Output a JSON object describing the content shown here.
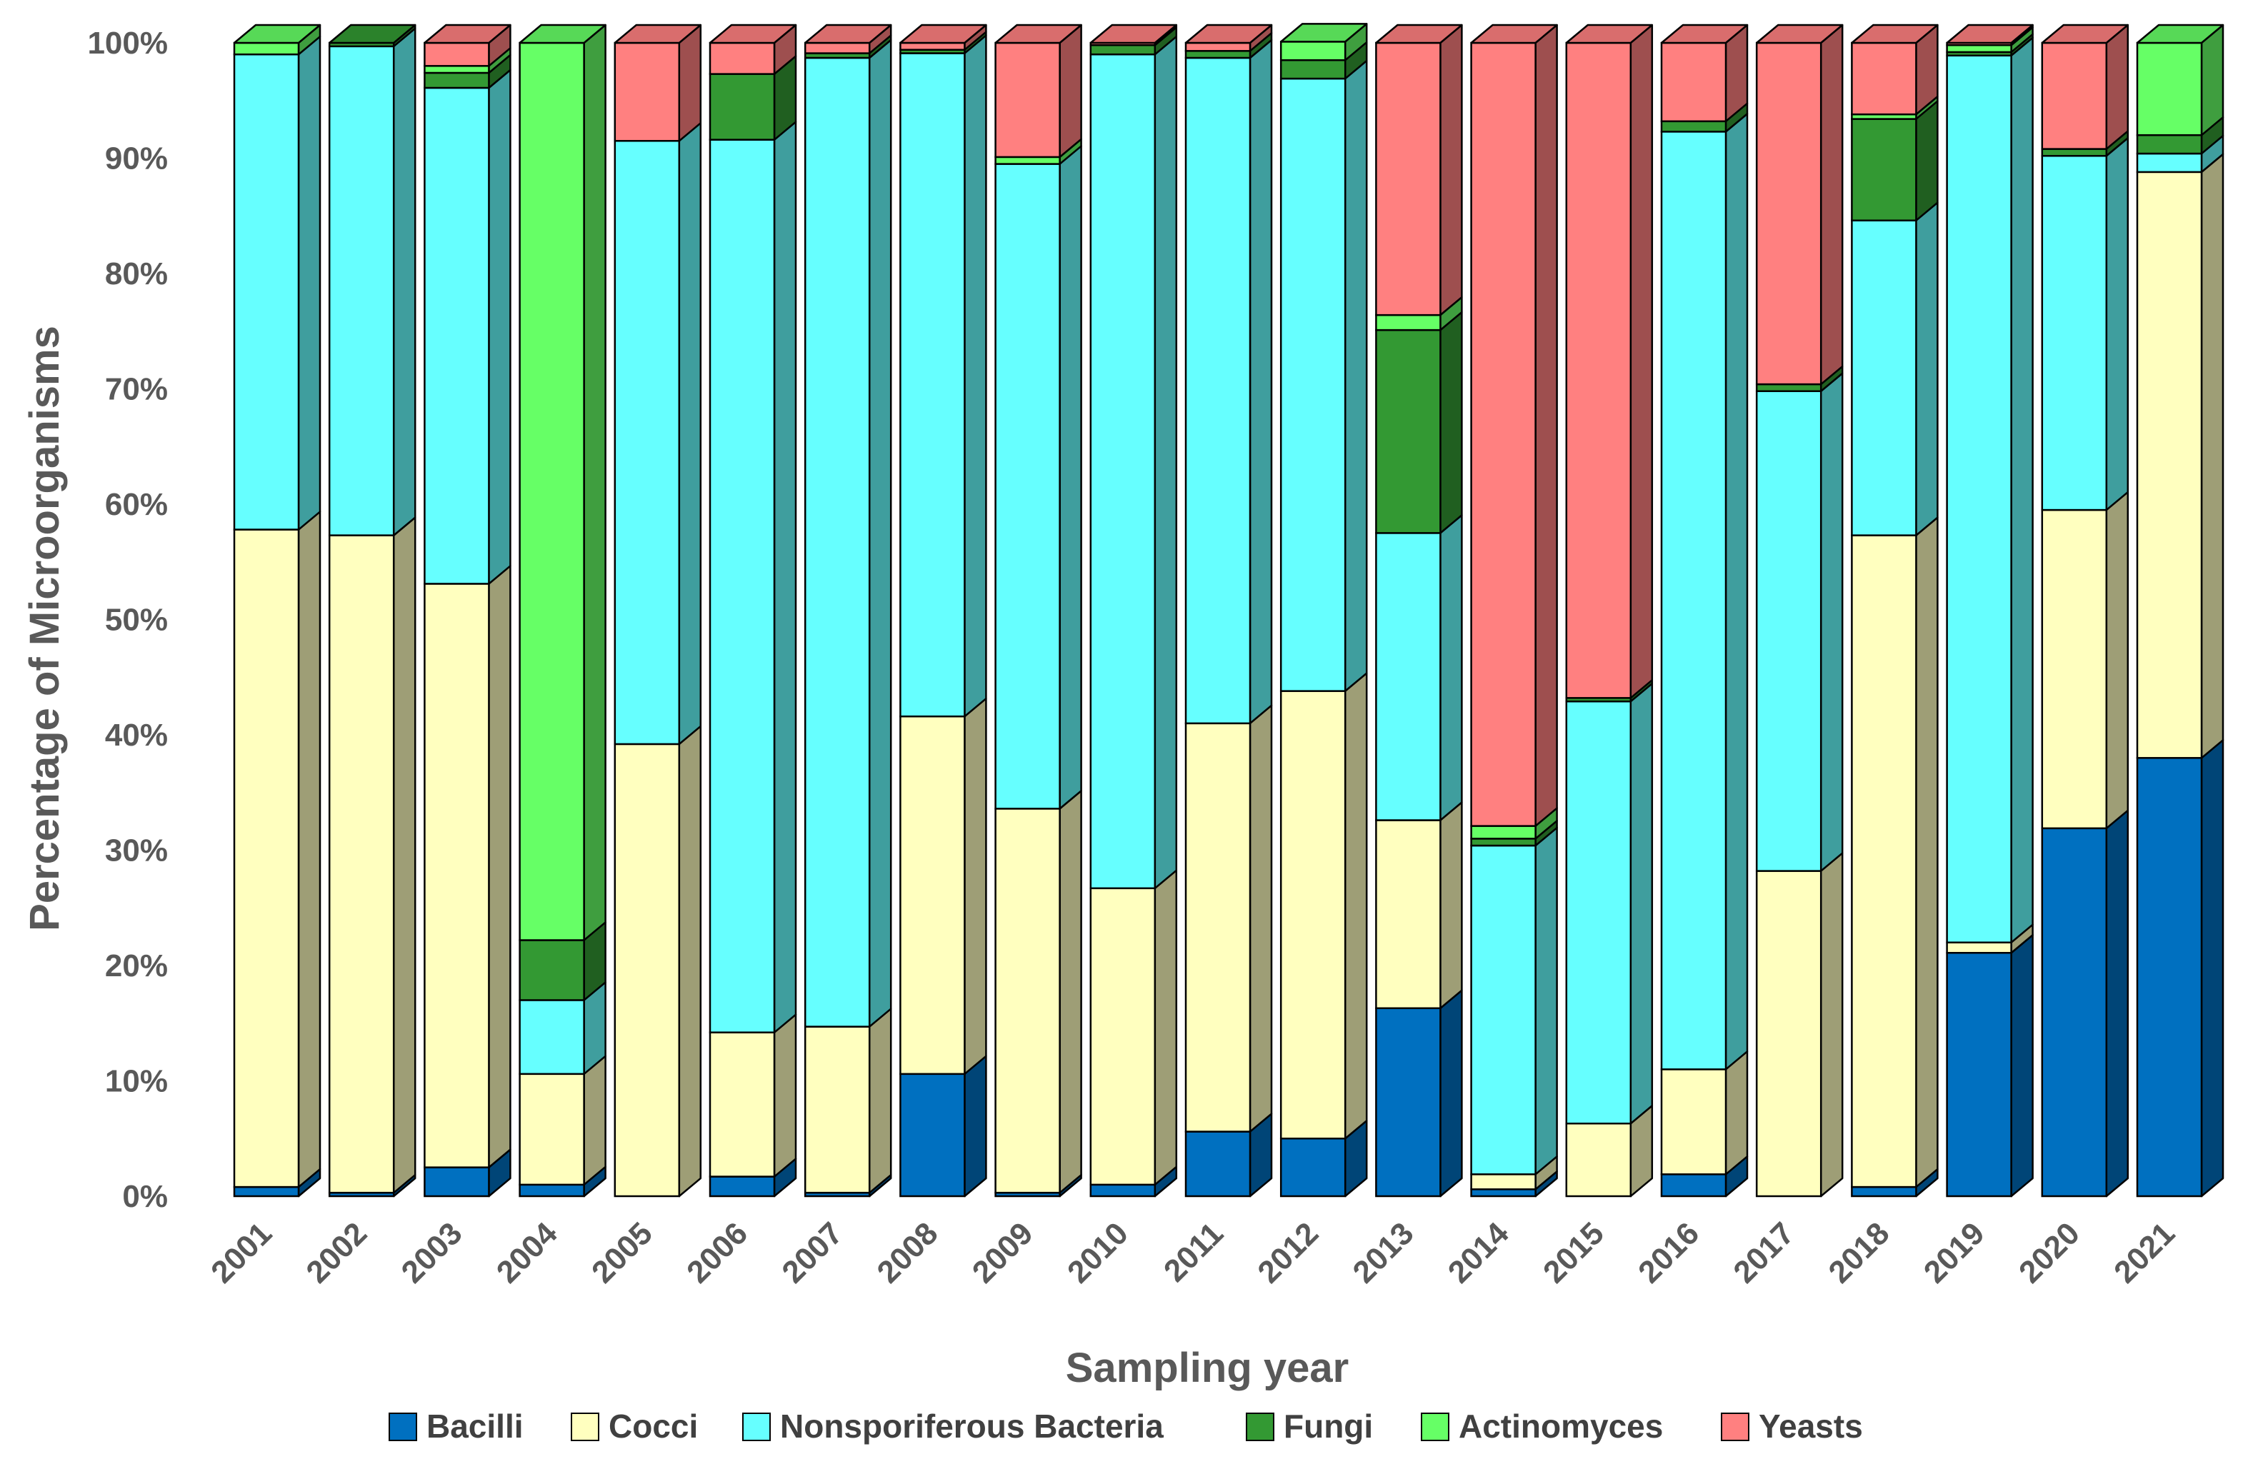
{
  "chart_data": {
    "type": "bar",
    "stacked": true,
    "title": "",
    "xlabel": "Sampling year",
    "ylabel": "Percentage of Microorganisms",
    "ylim": [
      0,
      100
    ],
    "y_ticks": [
      "0%",
      "10%",
      "20%",
      "30%",
      "40%",
      "50%",
      "60%",
      "70%",
      "80%",
      "90%",
      "100%"
    ],
    "categories": [
      "2001",
      "2002",
      "2003",
      "2004",
      "2005",
      "2006",
      "2007",
      "2008",
      "2009",
      "2010",
      "2011",
      "2012",
      "2013",
      "2014",
      "2015",
      "2016",
      "2017",
      "2018",
      "2019",
      "2020",
      "2021"
    ],
    "series": [
      {
        "name": "Bacilli",
        "color": "#0070C0",
        "values": [
          0.8,
          0.3,
          2.5,
          1.0,
          0.0,
          1.7,
          0.3,
          10.6,
          0.3,
          1.0,
          5.6,
          5.0,
          16.3,
          0.6,
          0.0,
          1.9,
          0.0,
          0.8,
          21.1,
          31.9,
          38.0
        ]
      },
      {
        "name": "Cocci",
        "color": "#FFFFBF",
        "values": [
          57.0,
          57.0,
          50.6,
          9.6,
          39.2,
          12.5,
          14.4,
          31.0,
          33.3,
          25.7,
          35.4,
          38.8,
          16.3,
          1.3,
          6.3,
          9.1,
          28.2,
          56.5,
          0.9,
          27.6,
          50.8
        ]
      },
      {
        "name": "Nonsporiferous Bacteria",
        "color": "#66FFFF",
        "values": [
          41.2,
          42.4,
          43.0,
          6.4,
          52.3,
          77.4,
          84.0,
          57.5,
          55.9,
          72.3,
          57.7,
          53.1,
          24.9,
          28.5,
          36.6,
          81.3,
          41.6,
          27.3,
          76.9,
          30.7,
          1.6
        ]
      },
      {
        "name": "Fungi",
        "color": "#339933",
        "values": [
          0.0,
          0.3,
          1.3,
          5.2,
          0.0,
          5.7,
          0.4,
          0.3,
          0.0,
          0.8,
          0.6,
          1.6,
          17.6,
          0.6,
          0.3,
          0.9,
          0.6,
          8.8,
          0.3,
          0.6,
          1.6
        ]
      },
      {
        "name": "Actinomyces",
        "color": "#66FF66",
        "values": [
          1.0,
          0.0,
          0.6,
          77.8,
          0.0,
          0.0,
          0.0,
          0.0,
          0.6,
          0.0,
          0.0,
          1.6,
          1.3,
          1.1,
          0.0,
          0.0,
          0.0,
          0.4,
          0.6,
          0.0,
          8.0
        ]
      },
      {
        "name": "Yeasts",
        "color": "#FF8080",
        "values": [
          0.0,
          0.0,
          2.0,
          0.0,
          8.5,
          2.7,
          0.9,
          0.6,
          9.9,
          0.2,
          0.7,
          0.0,
          23.6,
          67.9,
          56.8,
          6.8,
          29.6,
          6.2,
          0.2,
          9.2,
          0.0
        ]
      }
    ],
    "legend_position": "bottom"
  }
}
